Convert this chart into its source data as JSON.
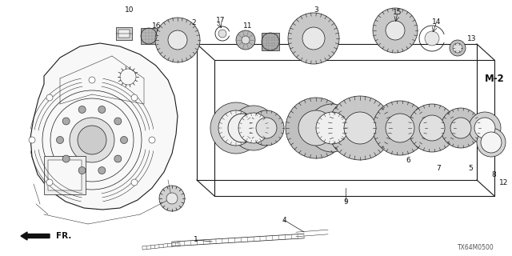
{
  "bg_color": "#ffffff",
  "diagram_code": "TX64M0500",
  "label_M2": "M-2",
  "label_FR": "FR.",
  "line_color": "#1a1a1a",
  "gear_fill": "#c8c8c8",
  "gear_dark": "#888888",
  "ring_fill": "#e0e0e0",
  "white": "#ffffff",
  "case_fill": "#f5f5f5"
}
